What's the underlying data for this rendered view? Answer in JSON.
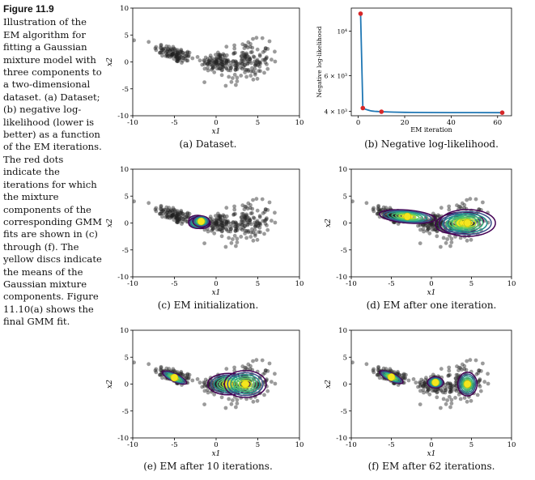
{
  "figure": {
    "number": "Figure 11.9",
    "caption": "Illustration of the EM algorithm for fitting a Gaussian mixture model with three components to a two-dimensional dataset. (a) Dataset; (b) negative log-likelihood (lower is better) as a function of the EM iterations. The red dots indicate the iterations for which the mixture components of the corresponding GMM fits are shown in (c) through (f). The yellow discs indicate the means of the Gaussian mixture components. Figure 11.10(a) shows the final GMM fit."
  },
  "subcaptions": {
    "a": "(a) Dataset.",
    "b": "(b) Negative log-likelihood.",
    "c": "(c) EM initialization.",
    "d": "(d) EM after one iteration.",
    "e": "(e) EM after 10 iterations.",
    "f": "(f) EM after 62 iterations."
  },
  "axes": {
    "x1_label": "x1",
    "x2_label": "x2"
  },
  "colors": {
    "points": "#222222",
    "line": "#1f77b4",
    "marker": "#d62728",
    "mean": "#f4e61e"
  },
  "chart_data": [
    {
      "id": "a",
      "type": "scatter",
      "title": "(a) Dataset.",
      "xlabel": "x1",
      "ylabel": "x2",
      "xlim": [
        -10,
        10
      ],
      "ylim": [
        -10,
        10
      ],
      "xticks": [
        -10,
        -5,
        0,
        5,
        10
      ],
      "yticks": [
        -10,
        -5,
        0,
        5,
        10
      ],
      "clusters": [
        {
          "cx": -5.0,
          "cy": 1.5,
          "sx": 1.2,
          "sy": 0.9,
          "rho": -0.6,
          "n": 110
        },
        {
          "cx": 0.0,
          "cy": 0.0,
          "sx": 0.9,
          "sy": 0.9,
          "rho": 0.0,
          "n": 80
        },
        {
          "cx": 3.5,
          "cy": 0.0,
          "sx": 1.5,
          "sy": 1.8,
          "rho": 0.1,
          "n": 160
        }
      ]
    },
    {
      "id": "b",
      "type": "line",
      "title": "(b) Negative log-likelihood.",
      "xlabel": "EM iteration",
      "ylabel": "Negative log-likelihood",
      "xlim": [
        -3,
        66
      ],
      "ylim": [
        3800,
        13000
      ],
      "yscale": "log",
      "xticks": [
        0,
        20,
        40,
        60
      ],
      "yticks": [
        {
          "value": 4000,
          "label": "4 × 10³"
        },
        {
          "value": 6000,
          "label": "6 × 10³"
        },
        {
          "value": 10000,
          "label": "10⁴"
        }
      ],
      "x": [
        1,
        2,
        3,
        4,
        5,
        6,
        7,
        8,
        9,
        10,
        15,
        20,
        30,
        40,
        50,
        62
      ],
      "y": [
        12200,
        4150,
        4100,
        4060,
        4030,
        4010,
        4000,
        3990,
        3985,
        3980,
        3960,
        3950,
        3945,
        3940,
        3938,
        3935
      ],
      "marked": [
        {
          "x": 1,
          "y": 12200
        },
        {
          "x": 2,
          "y": 4150
        },
        {
          "x": 10,
          "y": 3980
        },
        {
          "x": 62,
          "y": 3935
        }
      ]
    },
    {
      "id": "c",
      "type": "scatter",
      "title": "(c) EM initialization.",
      "xlabel": "x1",
      "ylabel": "x2",
      "xlim": [
        -10,
        10
      ],
      "ylim": [
        -10,
        10
      ],
      "xticks": [
        -10,
        -5,
        0,
        5,
        10
      ],
      "yticks": [
        -10,
        -5,
        0,
        5,
        10
      ],
      "components": [
        {
          "mx": -2.0,
          "my": 0.2,
          "ax": 1.3,
          "ay": 1.2,
          "angle": -10
        },
        {
          "mx": -2.2,
          "my": 0.0,
          "ax": 1.1,
          "ay": 1.0,
          "angle": 0
        },
        {
          "mx": -1.8,
          "my": 0.3,
          "ax": 1.0,
          "ay": 1.0,
          "angle": 0
        }
      ]
    },
    {
      "id": "d",
      "type": "scatter",
      "title": "(d) EM after one iteration.",
      "xlabel": "x1",
      "ylabel": "x2",
      "xlim": [
        -10,
        10
      ],
      "ylim": [
        -10,
        10
      ],
      "xticks": [
        -10,
        -5,
        0,
        5,
        10
      ],
      "yticks": [
        -10,
        -5,
        0,
        5,
        10
      ],
      "components": [
        {
          "mx": -3.0,
          "my": 1.2,
          "ax": 3.5,
          "ay": 1.2,
          "angle": -5
        },
        {
          "mx": 3.5,
          "my": 0.0,
          "ax": 3.0,
          "ay": 2.0,
          "angle": 5
        },
        {
          "mx": 4.5,
          "my": 0.0,
          "ax": 3.5,
          "ay": 2.5,
          "angle": 0
        }
      ]
    },
    {
      "id": "e",
      "type": "scatter",
      "title": "(e) EM after 10 iterations.",
      "xlabel": "x1",
      "ylabel": "x2",
      "xlim": [
        -10,
        10
      ],
      "ylim": [
        -10,
        10
      ],
      "xticks": [
        -10,
        -5,
        0,
        5,
        10
      ],
      "yticks": [
        -10,
        -5,
        0,
        5,
        10
      ],
      "components": [
        {
          "mx": -5.0,
          "my": 1.2,
          "ax": 1.6,
          "ay": 0.7,
          "angle": -25
        },
        {
          "mx": 1.5,
          "my": 0.0,
          "ax": 2.5,
          "ay": 2.0,
          "angle": 0
        },
        {
          "mx": 3.5,
          "my": 0.0,
          "ax": 2.5,
          "ay": 2.5,
          "angle": 0
        }
      ]
    },
    {
      "id": "f",
      "type": "scatter",
      "title": "(f) EM after 62 iterations.",
      "xlabel": "x1",
      "ylabel": "x2",
      "xlim": [
        -10,
        10
      ],
      "ylim": [
        -10,
        10
      ],
      "xticks": [
        -10,
        -5,
        0,
        5,
        10
      ],
      "yticks": [
        -10,
        -5,
        0,
        5,
        10
      ],
      "components": [
        {
          "mx": -5.0,
          "my": 1.3,
          "ax": 1.6,
          "ay": 0.7,
          "angle": -25
        },
        {
          "mx": 0.5,
          "my": 0.3,
          "ax": 1.0,
          "ay": 1.0,
          "angle": 0
        },
        {
          "mx": 4.5,
          "my": 0.0,
          "ax": 1.2,
          "ay": 2.2,
          "angle": 0
        }
      ]
    }
  ]
}
